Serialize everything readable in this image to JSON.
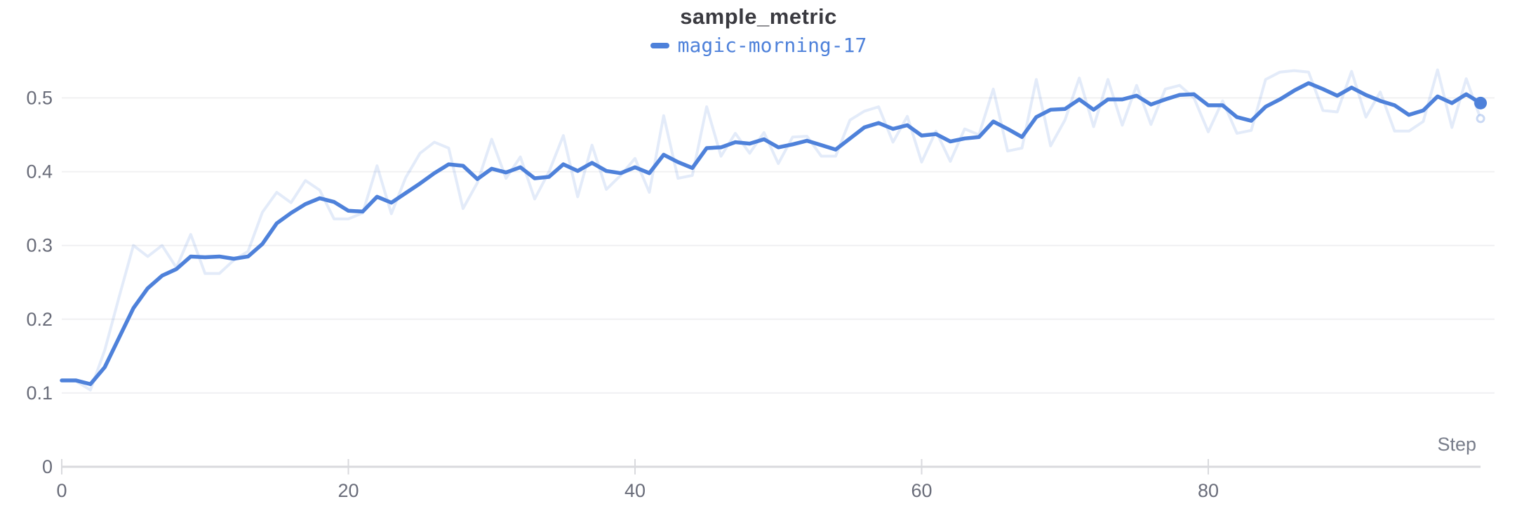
{
  "header": {
    "title": "sample_metric"
  },
  "legend": {
    "items": [
      {
        "label": "magic-morning-17",
        "color": "#4E81DA"
      }
    ]
  },
  "axes": {
    "x": {
      "label": "Step",
      "tick_labels": [
        "0",
        "20",
        "40",
        "60",
        "80"
      ],
      "tick_values": [
        0,
        20,
        40,
        60,
        80
      ]
    },
    "y": {
      "tick_labels": [
        "0",
        "0.1",
        "0.2",
        "0.3",
        "0.4",
        "0.5"
      ],
      "tick_values": [
        0,
        0.1,
        0.2,
        0.3,
        0.4,
        0.5
      ]
    }
  },
  "colors": {
    "line": "#4E81DA",
    "raw_line_rgba": "rgba(78,129,218,0.16)",
    "raw_marker_rgba": "rgba(78,129,218,0.30)",
    "grid": "#f0f0f2",
    "axis": "#d9dade",
    "tick_text": "#696c79",
    "axis_label_text": "#787d8a",
    "title_text": "#3a3a40",
    "background": "#ffffff"
  },
  "chart_data": {
    "type": "line",
    "title": "sample_metric",
    "xlabel": "Step",
    "ylabel": "",
    "xlim": [
      0,
      99
    ],
    "ylim": [
      0,
      0.55
    ],
    "grid": true,
    "legend_position": "top-center",
    "x": [
      0,
      1,
      2,
      3,
      4,
      5,
      6,
      7,
      8,
      9,
      10,
      11,
      12,
      13,
      14,
      15,
      16,
      17,
      18,
      19,
      20,
      21,
      22,
      23,
      24,
      25,
      26,
      27,
      28,
      29,
      30,
      31,
      32,
      33,
      34,
      35,
      36,
      37,
      38,
      39,
      40,
      41,
      42,
      43,
      44,
      45,
      46,
      47,
      48,
      49,
      50,
      51,
      52,
      53,
      54,
      55,
      56,
      57,
      58,
      59,
      60,
      61,
      62,
      63,
      64,
      65,
      66,
      67,
      68,
      69,
      70,
      71,
      72,
      73,
      74,
      75,
      76,
      77,
      78,
      79,
      80,
      81,
      82,
      83,
      84,
      85,
      86,
      87,
      88,
      89,
      90,
      91,
      92,
      93,
      94,
      95,
      96,
      97,
      98,
      99
    ],
    "series": [
      {
        "name": "magic-morning-17 (raw)",
        "style": "faint",
        "values": [
          0.117,
          0.116,
          0.104,
          0.158,
          0.23,
          0.3,
          0.285,
          0.3,
          0.27,
          0.315,
          0.262,
          0.262,
          0.28,
          0.292,
          0.345,
          0.372,
          0.358,
          0.388,
          0.375,
          0.336,
          0.336,
          0.344,
          0.408,
          0.343,
          0.392,
          0.425,
          0.44,
          0.432,
          0.35,
          0.385,
          0.444,
          0.391,
          0.42,
          0.363,
          0.4,
          0.449,
          0.366,
          0.436,
          0.376,
          0.395,
          0.418,
          0.372,
          0.476,
          0.391,
          0.395,
          0.488,
          0.421,
          0.452,
          0.425,
          0.453,
          0.411,
          0.447,
          0.448,
          0.421,
          0.421,
          0.47,
          0.482,
          0.488,
          0.44,
          0.475,
          0.413,
          0.455,
          0.414,
          0.458,
          0.45,
          0.512,
          0.428,
          0.432,
          0.525,
          0.435,
          0.47,
          0.527,
          0.461,
          0.525,
          0.463,
          0.517,
          0.464,
          0.512,
          0.517,
          0.5,
          0.454,
          0.496,
          0.452,
          0.456,
          0.525,
          0.535,
          0.537,
          0.535,
          0.483,
          0.481,
          0.536,
          0.474,
          0.508,
          0.455,
          0.455,
          0.468,
          0.538,
          0.46,
          0.526,
          0.472
        ]
      },
      {
        "name": "magic-morning-17 (smoothed)",
        "style": "solid",
        "values": [
          0.117,
          0.117,
          0.112,
          0.135,
          0.175,
          0.215,
          0.242,
          0.259,
          0.268,
          0.285,
          0.284,
          0.285,
          0.282,
          0.285,
          0.302,
          0.33,
          0.344,
          0.356,
          0.364,
          0.359,
          0.347,
          0.346,
          0.366,
          0.358,
          0.371,
          0.384,
          0.398,
          0.41,
          0.408,
          0.39,
          0.404,
          0.399,
          0.406,
          0.391,
          0.393,
          0.41,
          0.401,
          0.412,
          0.401,
          0.398,
          0.406,
          0.398,
          0.423,
          0.413,
          0.405,
          0.432,
          0.433,
          0.44,
          0.438,
          0.444,
          0.433,
          0.437,
          0.442,
          0.436,
          0.43,
          0.445,
          0.46,
          0.466,
          0.458,
          0.463,
          0.449,
          0.451,
          0.441,
          0.445,
          0.447,
          0.468,
          0.458,
          0.447,
          0.474,
          0.484,
          0.485,
          0.498,
          0.484,
          0.498,
          0.498,
          0.503,
          0.491,
          0.498,
          0.504,
          0.505,
          0.49,
          0.49,
          0.474,
          0.469,
          0.488,
          0.498,
          0.51,
          0.52,
          0.512,
          0.503,
          0.514,
          0.504,
          0.496,
          0.49,
          0.477,
          0.483,
          0.502,
          0.493,
          0.505,
          0.493
        ]
      }
    ]
  }
}
